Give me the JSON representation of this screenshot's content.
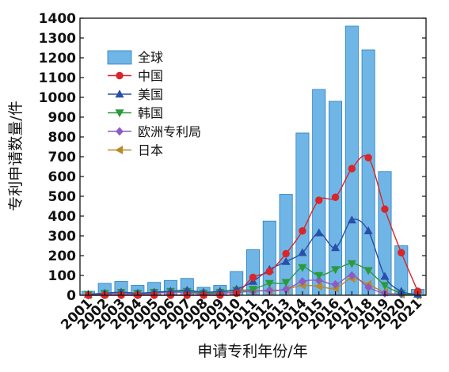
{
  "chart_data": {
    "type": "bar",
    "title": "",
    "xlabel": "申请专利年份/年",
    "ylabel": "专利申请数量/件",
    "ylim": [
      0,
      1400
    ],
    "yticks": [
      0,
      100,
      200,
      300,
      400,
      500,
      600,
      700,
      800,
      900,
      1000,
      1100,
      1200,
      1300,
      1400
    ],
    "categories": [
      "2001",
      "2002",
      "2003",
      "2004",
      "2005",
      "2006",
      "2007",
      "2008",
      "2009",
      "2010",
      "2011",
      "2012",
      "2013",
      "2014",
      "2015",
      "2016",
      "2017",
      "2018",
      "2019",
      "2020",
      "2021"
    ],
    "legend_position": "top-left",
    "grid": false,
    "series": [
      {
        "name": "全球",
        "kind": "bar",
        "color": "#6fb6e6",
        "values": [
          20,
          60,
          70,
          50,
          65,
          75,
          85,
          40,
          50,
          120,
          230,
          375,
          510,
          820,
          1040,
          980,
          1360,
          1240,
          625,
          250,
          30
        ]
      },
      {
        "name": "中国",
        "kind": "line",
        "marker": "circle",
        "color": "#d9262b",
        "values": [
          0,
          0,
          0,
          0,
          0,
          0,
          0,
          0,
          0,
          10,
          90,
          120,
          210,
          325,
          480,
          495,
          640,
          695,
          435,
          215,
          20
        ]
      },
      {
        "name": "美国",
        "kind": "line",
        "marker": "triangle-up",
        "color": "#2b4fa8",
        "values": [
          5,
          10,
          15,
          10,
          15,
          20,
          25,
          15,
          20,
          30,
          70,
          130,
          170,
          215,
          315,
          240,
          380,
          325,
          95,
          20,
          5
        ]
      },
      {
        "name": "韩国",
        "kind": "line",
        "marker": "triangle-down",
        "color": "#2a9a3c",
        "values": [
          5,
          10,
          15,
          10,
          15,
          20,
          20,
          10,
          15,
          25,
          30,
          60,
          65,
          140,
          100,
          130,
          160,
          125,
          50,
          10,
          0
        ]
      },
      {
        "name": "欧洲专利局",
        "kind": "line",
        "marker": "diamond",
        "color": "#8e5ac4",
        "values": [
          0,
          5,
          10,
          5,
          10,
          15,
          15,
          5,
          10,
          15,
          20,
          25,
          30,
          70,
          75,
          55,
          100,
          40,
          10,
          5,
          0
        ]
      },
      {
        "name": "日本",
        "kind": "line",
        "marker": "triangle-left",
        "color": "#b88a2a",
        "values": [
          0,
          5,
          10,
          5,
          10,
          15,
          15,
          5,
          10,
          15,
          25,
          20,
          30,
          50,
          45,
          35,
          85,
          55,
          15,
          5,
          0
        ]
      }
    ]
  }
}
